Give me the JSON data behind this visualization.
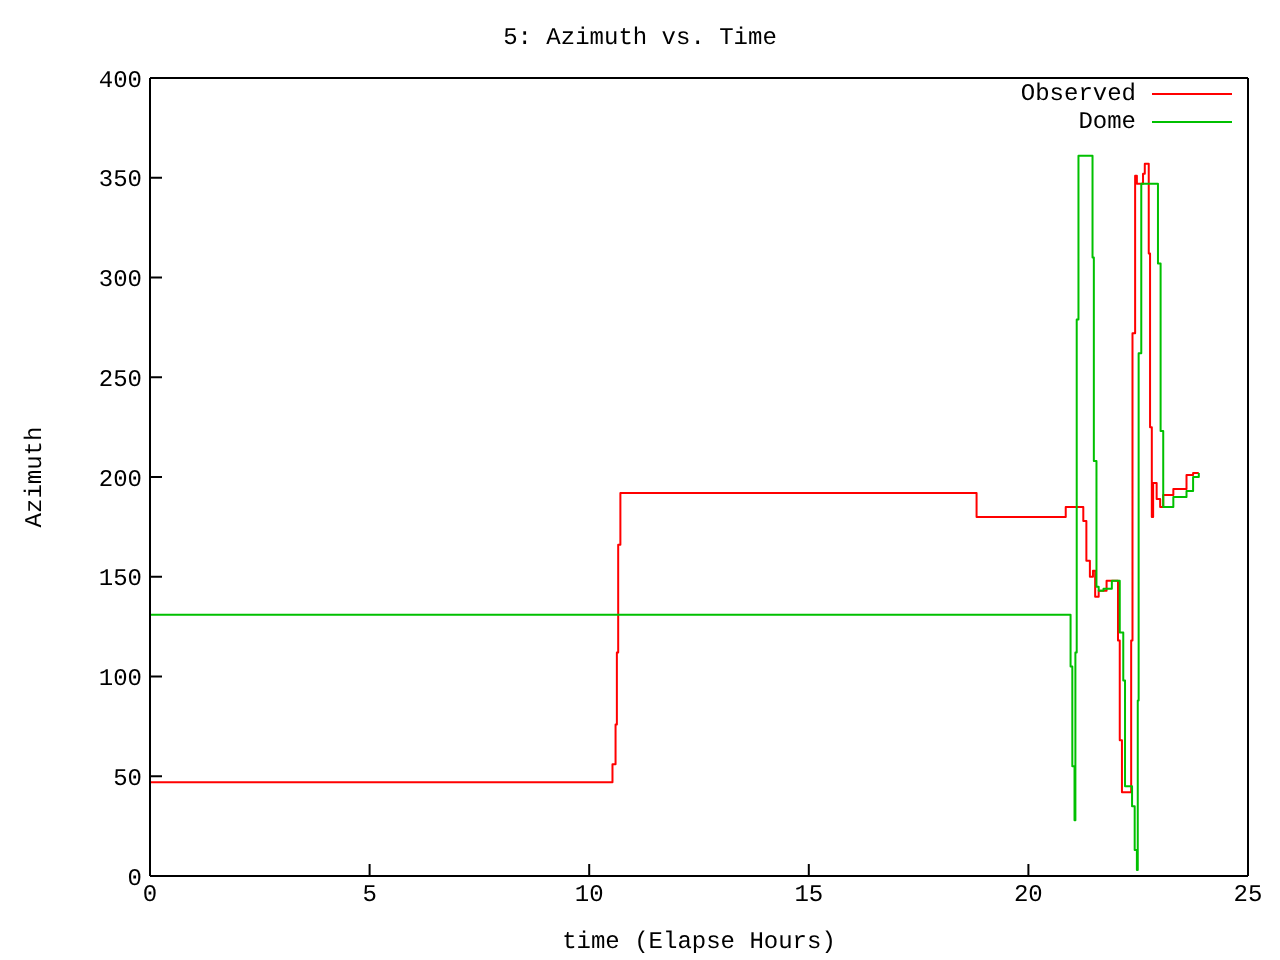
{
  "chart_data": {
    "type": "step",
    "title": "5: Azimuth vs. Time",
    "xlabel": "time (Elapse Hours)",
    "ylabel": "Azimuth",
    "xlim": [
      0,
      25
    ],
    "xticks": [
      0,
      5,
      10,
      15,
      20,
      25
    ],
    "ylim": [
      0,
      400
    ],
    "yticks": [
      0,
      50,
      100,
      150,
      200,
      250,
      300,
      350,
      400
    ],
    "legend": "top right",
    "marker": "none",
    "line_style": "solid",
    "series": [
      {
        "name": "Observed",
        "color": "#ff0000",
        "x": [
          0,
          10.53,
          10.6,
          10.63,
          10.66,
          10.71,
          18.82,
          20.85,
          21.25,
          21.32,
          21.4,
          21.47,
          21.52,
          21.6,
          21.78,
          22.04,
          22.08,
          22.13,
          22.19,
          22.34,
          22.37,
          22.43,
          22.47,
          22.61,
          22.65,
          22.74,
          22.77,
          22.81,
          22.84,
          22.92,
          23.0,
          23.07,
          23.3,
          23.6,
          23.75,
          23.88
        ],
        "values": [
          47,
          56,
          76,
          112,
          166,
          192,
          180,
          185,
          178,
          158,
          150,
          153,
          140,
          143,
          148,
          118,
          68,
          42,
          42,
          118,
          272,
          351,
          347,
          352,
          357,
          312,
          225,
          180,
          197,
          189,
          185,
          191,
          194,
          201,
          202,
          202
        ]
      },
      {
        "name": "Dome",
        "color": "#00c000",
        "x": [
          0,
          20.96,
          21.0,
          21.05,
          21.07,
          21.1,
          21.14,
          21.46,
          21.49,
          21.55,
          21.6,
          21.71,
          21.9,
          22.05,
          22.08,
          22.16,
          22.2,
          22.36,
          22.42,
          22.47,
          22.49,
          22.51,
          22.57,
          22.95,
          23.01,
          23.07,
          23.3,
          23.6,
          23.75,
          23.88
        ],
        "values": [
          131,
          105,
          55,
          28,
          112,
          279,
          361,
          310,
          208,
          145,
          143,
          144,
          148,
          148,
          122,
          98,
          45,
          35,
          13,
          3,
          88,
          262,
          347,
          307,
          223,
          185,
          190,
          193,
          200,
          202
        ]
      }
    ]
  }
}
